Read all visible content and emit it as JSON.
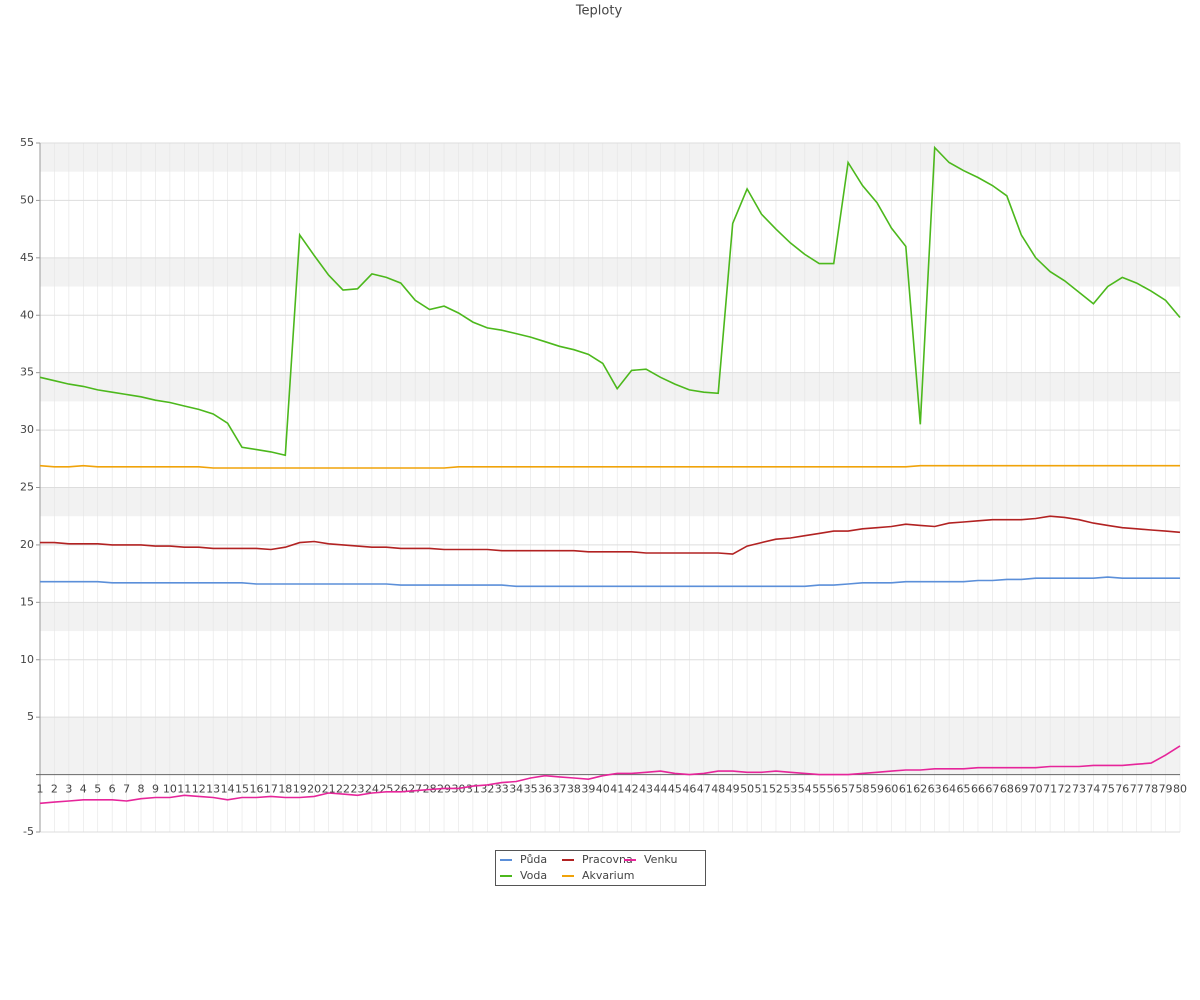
{
  "chart_data": {
    "type": "line",
    "title": "Teploty",
    "categories": [
      1,
      2,
      3,
      4,
      5,
      6,
      7,
      8,
      9,
      10,
      11,
      12,
      13,
      14,
      15,
      16,
      17,
      18,
      19,
      20,
      21,
      22,
      23,
      24,
      25,
      26,
      27,
      28,
      29,
      30,
      31,
      32,
      33,
      34,
      35,
      36,
      37,
      38,
      39,
      40,
      41,
      42,
      43,
      44,
      45,
      46,
      47,
      48,
      49,
      50,
      51,
      52,
      53,
      54,
      55,
      56,
      57,
      58,
      59,
      60,
      61,
      62,
      63,
      64,
      65,
      66,
      67,
      68,
      69,
      70,
      71,
      72,
      73,
      74,
      75,
      76,
      77,
      78,
      79,
      80
    ],
    "ylim": [
      -5,
      55
    ],
    "yticks": [
      -5,
      5,
      10,
      15,
      20,
      25,
      30,
      35,
      40,
      45,
      50,
      55
    ],
    "grid": true,
    "series": [
      {
        "name": "Půda",
        "color": "#5b8fd9",
        "values": [
          16.8,
          16.8,
          16.8,
          16.8,
          16.8,
          16.7,
          16.7,
          16.7,
          16.7,
          16.7,
          16.7,
          16.7,
          16.7,
          16.7,
          16.7,
          16.6,
          16.6,
          16.6,
          16.6,
          16.6,
          16.6,
          16.6,
          16.6,
          16.6,
          16.6,
          16.5,
          16.5,
          16.5,
          16.5,
          16.5,
          16.5,
          16.5,
          16.5,
          16.4,
          16.4,
          16.4,
          16.4,
          16.4,
          16.4,
          16.4,
          16.4,
          16.4,
          16.4,
          16.4,
          16.4,
          16.4,
          16.4,
          16.4,
          16.4,
          16.4,
          16.4,
          16.4,
          16.4,
          16.4,
          16.5,
          16.5,
          16.6,
          16.7,
          16.7,
          16.7,
          16.8,
          16.8,
          16.8,
          16.8,
          16.8,
          16.9,
          16.9,
          17.0,
          17.0,
          17.1,
          17.1,
          17.1,
          17.1,
          17.1,
          17.2,
          17.1,
          17.1,
          17.1,
          17.1,
          17.1
        ]
      },
      {
        "name": "Voda",
        "color": "#4cb81c",
        "values": [
          34.6,
          34.3,
          34.0,
          33.8,
          33.5,
          33.3,
          33.1,
          32.9,
          32.6,
          32.4,
          32.1,
          31.8,
          31.4,
          30.6,
          28.5,
          28.3,
          28.1,
          27.8,
          47,
          45.2,
          43.5,
          42.2,
          42.3,
          43.6,
          43.3,
          42.8,
          41.3,
          40.5,
          40.8,
          40.2,
          39.4,
          38.9,
          38.7,
          38.4,
          38.1,
          37.7,
          37.3,
          37,
          36.6,
          35.8,
          33.6,
          35.2,
          35.3,
          34.6,
          34,
          33.5,
          33.3,
          33.2,
          48,
          51,
          48.8,
          47.5,
          46.3,
          45.3,
          44.5,
          44.5,
          53.3,
          51.3,
          49.8,
          47.6,
          46,
          30.5,
          54.6,
          53.3,
          52.6,
          52,
          51.3,
          50.4,
          47,
          45,
          43.8,
          43,
          42,
          41,
          42.5,
          43.3,
          42.8,
          42.1,
          41.3,
          39.8
        ]
      },
      {
        "name": "Pracovna",
        "color": "#b22222",
        "values": [
          20.2,
          20.2,
          20.1,
          20.1,
          20.1,
          20.0,
          20.0,
          20.0,
          19.9,
          19.9,
          19.8,
          19.8,
          19.7,
          19.7,
          19.7,
          19.7,
          19.6,
          19.8,
          20.2,
          20.3,
          20.1,
          20.0,
          19.9,
          19.8,
          19.8,
          19.7,
          19.7,
          19.7,
          19.6,
          19.6,
          19.6,
          19.6,
          19.5,
          19.5,
          19.5,
          19.5,
          19.5,
          19.5,
          19.4,
          19.4,
          19.4,
          19.4,
          19.3,
          19.3,
          19.3,
          19.3,
          19.3,
          19.3,
          19.2,
          19.9,
          20.2,
          20.5,
          20.6,
          20.8,
          21.0,
          21.2,
          21.2,
          21.4,
          21.5,
          21.6,
          21.8,
          21.7,
          21.6,
          21.9,
          22.0,
          22.1,
          22.2,
          22.2,
          22.2,
          22.3,
          22.5,
          22.4,
          22.2,
          21.9,
          21.7,
          21.5,
          21.4,
          21.3,
          21.2,
          21.1
        ]
      },
      {
        "name": "Akvarium",
        "color": "#f0a30a",
        "values": [
          26.9,
          26.8,
          26.8,
          26.9,
          26.8,
          26.8,
          26.8,
          26.8,
          26.8,
          26.8,
          26.8,
          26.8,
          26.7,
          26.7,
          26.7,
          26.7,
          26.7,
          26.7,
          26.7,
          26.7,
          26.7,
          26.7,
          26.7,
          26.7,
          26.7,
          26.7,
          26.7,
          26.7,
          26.7,
          26.8,
          26.8,
          26.8,
          26.8,
          26.8,
          26.8,
          26.8,
          26.8,
          26.8,
          26.8,
          26.8,
          26.8,
          26.8,
          26.8,
          26.8,
          26.8,
          26.8,
          26.8,
          26.8,
          26.8,
          26.8,
          26.8,
          26.8,
          26.8,
          26.8,
          26.8,
          26.8,
          26.8,
          26.8,
          26.8,
          26.8,
          26.8,
          26.9,
          26.9,
          26.9,
          26.9,
          26.9,
          26.9,
          26.9,
          26.9,
          26.9,
          26.9,
          26.9,
          26.9,
          26.9,
          26.9,
          26.9,
          26.9,
          26.9,
          26.9,
          26.9
        ]
      },
      {
        "name": "Venku",
        "color": "#e6259a",
        "values": [
          -2.5,
          -2.4,
          -2.3,
          -2.2,
          -2.2,
          -2.2,
          -2.3,
          -2.1,
          -2.0,
          -2.0,
          -1.8,
          -1.9,
          -2.0,
          -2.2,
          -2.0,
          -2.0,
          -1.9,
          -2.0,
          -2.0,
          -1.9,
          -1.6,
          -1.7,
          -1.8,
          -1.6,
          -1.5,
          -1.5,
          -1.4,
          -1.3,
          -1.2,
          -1.2,
          -1.0,
          -0.9,
          -0.7,
          -0.6,
          -0.3,
          -0.1,
          -0.2,
          -0.3,
          -0.4,
          -0.1,
          0.1,
          0.1,
          0.2,
          0.3,
          0.1,
          0.0,
          0.1,
          0.3,
          0.3,
          0.2,
          0.2,
          0.3,
          0.2,
          0.1,
          0.0,
          0.0,
          0.0,
          0.1,
          0.2,
          0.3,
          0.4,
          0.4,
          0.5,
          0.5,
          0.5,
          0.6,
          0.6,
          0.6,
          0.6,
          0.6,
          0.7,
          0.7,
          0.7,
          0.8,
          0.8,
          0.8,
          0.9,
          1.0,
          1.7,
          2.5
        ]
      }
    ]
  }
}
